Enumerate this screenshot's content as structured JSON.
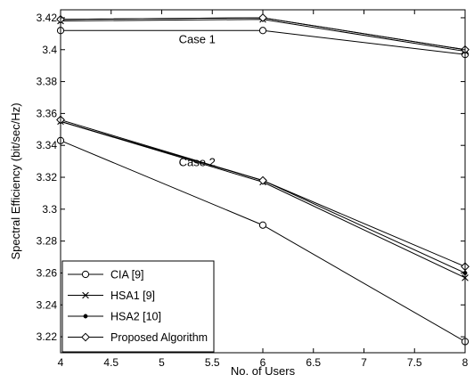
{
  "chart_data": {
    "type": "line",
    "title": "",
    "xlabel": "No. of Users",
    "ylabel": "Spectral Efficiency (bit/sec/Hz)",
    "xlim": [
      4,
      8
    ],
    "ylim": [
      3.21,
      3.425
    ],
    "xticks": [
      4,
      4.5,
      5,
      5.5,
      6,
      6.5,
      7,
      7.5,
      8
    ],
    "xtick_labels": [
      "4",
      "4.5",
      "5",
      "5.5",
      "6",
      "6.5",
      "7",
      "7.5",
      "8"
    ],
    "yticks": [
      3.22,
      3.24,
      3.26,
      3.28,
      3.3,
      3.32,
      3.34,
      3.36,
      3.38,
      3.4,
      3.42
    ],
    "ytick_labels": [
      "3.22",
      "3.24",
      "3.26",
      "3.28",
      "3.3",
      "3.32",
      "3.34",
      "3.36",
      "3.38",
      "3.4",
      "3.42"
    ],
    "grid": false,
    "legend_position": "bottom-left",
    "series_color": "#000000",
    "annotations": [
      {
        "text": "Case 1",
        "x": 5.35,
        "y": 3.404
      },
      {
        "text": "Case 2",
        "x": 5.35,
        "y": 3.327
      }
    ],
    "cases": [
      {
        "case": "Case 1",
        "x": [
          4,
          6,
          8
        ],
        "series": [
          {
            "name": "CIA [9]",
            "marker": "circle",
            "values": [
              3.412,
              3.412,
              3.397
            ]
          },
          {
            "name": "HSA1 [9]",
            "marker": "x",
            "values": [
              3.418,
              3.419,
              3.399
            ]
          },
          {
            "name": "HSA2 [10]",
            "marker": "dot",
            "values": [
              3.419,
              3.42,
              3.4
            ]
          },
          {
            "name": "Proposed Algorithm",
            "marker": "diamond",
            "values": [
              3.419,
              3.42,
              3.4
            ]
          }
        ]
      },
      {
        "case": "Case 2",
        "x": [
          4,
          6,
          8
        ],
        "series": [
          {
            "name": "CIA [9]",
            "marker": "circle",
            "values": [
              3.343,
              3.29,
              3.217
            ]
          },
          {
            "name": "HSA1 [9]",
            "marker": "x",
            "values": [
              3.355,
              3.317,
              3.257
            ]
          },
          {
            "name": "HSA2 [10]",
            "marker": "dot",
            "values": [
              3.355,
              3.318,
              3.26
            ]
          },
          {
            "name": "Proposed Algorithm",
            "marker": "diamond",
            "values": [
              3.356,
              3.318,
              3.264
            ]
          }
        ]
      }
    ]
  }
}
